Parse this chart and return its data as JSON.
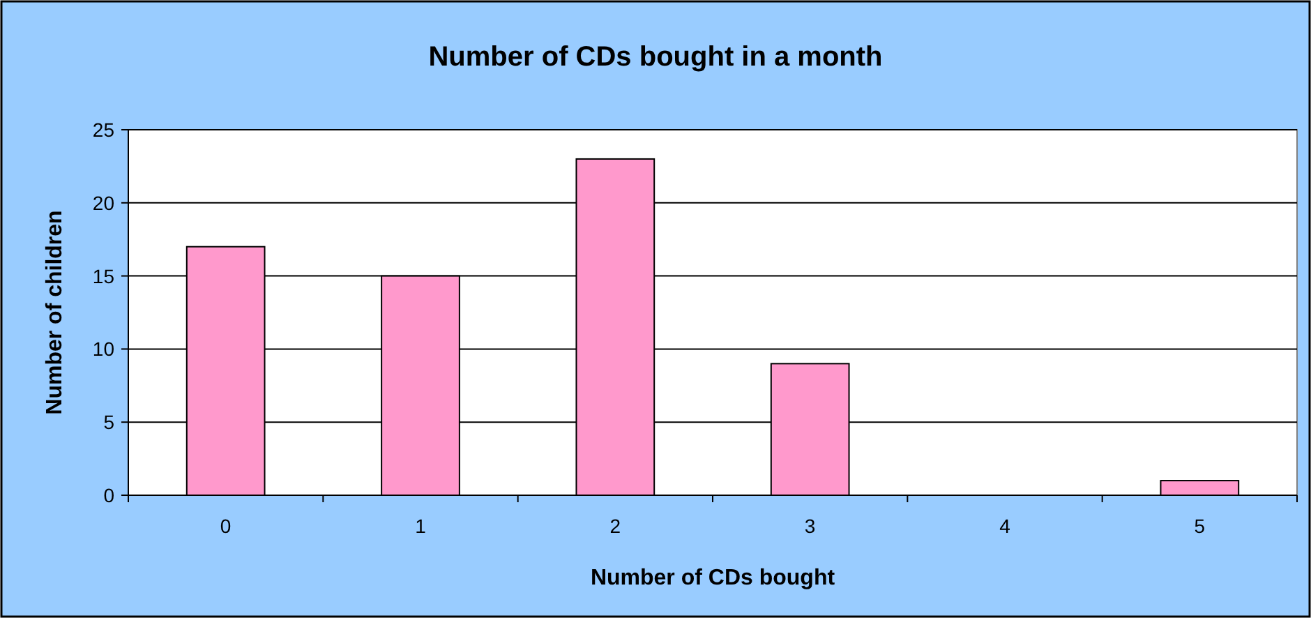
{
  "chart_data": {
    "type": "bar",
    "title": "Number of CDs bought in a month",
    "xlabel": "Number of CDs bought",
    "ylabel": "Number of children",
    "categories": [
      "0",
      "1",
      "2",
      "3",
      "4",
      "5"
    ],
    "values": [
      17,
      15,
      23,
      9,
      0,
      1
    ],
    "color": "#ff99cc",
    "ylim": [
      0,
      25
    ],
    "yticks": [
      0,
      5,
      10,
      15,
      20,
      25
    ],
    "grid": "y"
  }
}
